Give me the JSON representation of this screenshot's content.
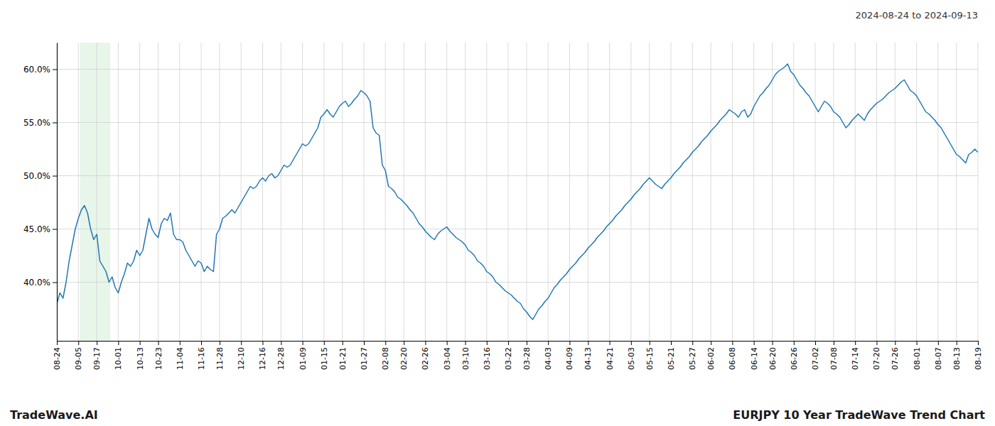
{
  "chart_data": {
    "type": "line",
    "title": "EURJPY 10 Year TradeWave Trend Chart",
    "subtitle": "2024-08-24 to 2024-09-13",
    "annotations": [
      "TradeWave.AI"
    ],
    "categories": [
      "08-24",
      null,
      null,
      null,
      null,
      null,
      null,
      "09-05",
      null,
      null,
      null,
      null,
      null,
      "09-17",
      null,
      null,
      null,
      null,
      null,
      null,
      "10-01",
      null,
      null,
      null,
      null,
      null,
      null,
      "10-13",
      null,
      null,
      null,
      null,
      null,
      "10-23",
      null,
      null,
      null,
      null,
      null,
      null,
      "11-04",
      null,
      null,
      null,
      null,
      null,
      null,
      "11-16",
      null,
      null,
      null,
      null,
      null,
      "11-28",
      null,
      null,
      null,
      null,
      null,
      null,
      "12-10",
      null,
      null,
      null,
      null,
      null,
      null,
      "12-16",
      null,
      null,
      null,
      null,
      null,
      "12-28",
      null,
      null,
      null,
      null,
      null,
      null,
      "01-09",
      null,
      null,
      null,
      null,
      null,
      null,
      "01-15",
      null,
      null,
      null,
      null,
      null,
      "01-21",
      null,
      null,
      null,
      null,
      null,
      null,
      "01-27",
      null,
      null,
      null,
      null,
      null,
      null,
      "02-08",
      null,
      null,
      null,
      null,
      null,
      "02-20",
      null,
      null,
      null,
      null,
      null,
      null,
      "02-26",
      null,
      null,
      null,
      null,
      null,
      null,
      "03-04",
      null,
      null,
      null,
      null,
      null,
      "03-10",
      null,
      null,
      null,
      null,
      null,
      null,
      "03-16",
      null,
      null,
      null,
      null,
      null,
      null,
      "03-22",
      null,
      null,
      null,
      null,
      null,
      "03-28",
      null,
      null,
      null,
      null,
      null,
      null,
      "04-03",
      null,
      null,
      null,
      null,
      null,
      null,
      "04-09",
      null,
      null,
      null,
      null,
      null,
      "04-13",
      null,
      null,
      null,
      null,
      null,
      null,
      "04-21",
      null,
      null,
      null,
      null,
      null,
      null,
      "05-03",
      null,
      null,
      null,
      null,
      null,
      "05-15",
      null,
      null,
      null,
      null,
      null,
      null,
      "05-21",
      null,
      null,
      null,
      null,
      null,
      null,
      "05-27",
      null,
      null,
      null,
      null,
      null,
      "06-02",
      null,
      null,
      null,
      null,
      null,
      null,
      "06-08",
      null,
      null,
      null,
      null,
      null,
      null,
      "06-14",
      null,
      null,
      null,
      null,
      null,
      "06-20",
      null,
      null,
      null,
      null,
      null,
      null,
      "06-26",
      null,
      null,
      null,
      null,
      null,
      null,
      "07-02",
      null,
      null,
      null,
      null,
      null,
      "07-08",
      null,
      null,
      null,
      null,
      null,
      null,
      "07-14",
      null,
      null,
      null,
      null,
      null,
      null,
      "07-20",
      null,
      null,
      null,
      null,
      null,
      "07-26",
      null,
      null,
      null,
      null,
      null,
      null,
      "08-01",
      null,
      null,
      null,
      null,
      null,
      null,
      "08-07",
      null,
      null,
      null,
      null,
      null,
      "08-13",
      null,
      null,
      null,
      null,
      null,
      null,
      "08-19"
    ],
    "values": [
      0.38,
      0.39,
      0.385,
      0.4,
      0.42,
      0.435,
      0.45,
      0.46,
      0.468,
      0.472,
      0.465,
      0.45,
      0.44,
      0.445,
      0.42,
      0.415,
      0.41,
      0.4,
      0.405,
      0.395,
      0.39,
      0.4,
      0.408,
      0.418,
      0.415,
      0.42,
      0.43,
      0.425,
      0.43,
      0.445,
      0.46,
      0.45,
      0.445,
      0.442,
      0.455,
      0.46,
      0.458,
      0.465,
      0.445,
      0.44,
      0.44,
      0.438,
      0.43,
      0.425,
      0.42,
      0.415,
      0.42,
      0.418,
      0.41,
      0.415,
      0.412,
      0.41,
      0.445,
      0.45,
      0.46,
      0.462,
      0.465,
      0.468,
      0.465,
      0.47,
      0.475,
      0.48,
      0.485,
      0.49,
      0.488,
      0.49,
      0.495,
      0.498,
      0.495,
      0.5,
      0.502,
      0.498,
      0.5,
      0.505,
      0.51,
      0.508,
      0.51,
      0.515,
      0.52,
      0.525,
      0.53,
      0.528,
      0.53,
      0.535,
      0.54,
      0.545,
      0.555,
      0.558,
      0.562,
      0.558,
      0.555,
      0.56,
      0.565,
      0.568,
      0.57,
      0.565,
      0.568,
      0.572,
      0.575,
      0.58,
      0.578,
      0.575,
      0.57,
      0.545,
      0.54,
      0.538,
      0.51,
      0.505,
      0.49,
      0.488,
      0.485,
      0.48,
      0.478,
      0.475,
      0.472,
      0.468,
      0.465,
      0.46,
      0.455,
      0.452,
      0.448,
      0.445,
      0.442,
      0.44,
      0.445,
      0.448,
      0.45,
      0.452,
      0.448,
      0.445,
      0.442,
      0.44,
      0.438,
      0.435,
      0.43,
      0.428,
      0.425,
      0.42,
      0.418,
      0.415,
      0.41,
      0.408,
      0.405,
      0.4,
      0.398,
      0.395,
      0.392,
      0.39,
      0.388,
      0.385,
      0.382,
      0.38,
      0.375,
      0.372,
      0.368,
      0.365,
      0.37,
      0.375,
      0.378,
      0.382,
      0.385,
      0.39,
      0.395,
      0.398,
      0.402,
      0.405,
      0.408,
      0.412,
      0.415,
      0.418,
      0.422,
      0.425,
      0.428,
      0.432,
      0.435,
      0.438,
      0.442,
      0.445,
      0.448,
      0.452,
      0.455,
      0.458,
      0.462,
      0.465,
      0.468,
      0.472,
      0.475,
      0.478,
      0.482,
      0.485,
      0.488,
      0.492,
      0.495,
      0.498,
      0.495,
      0.492,
      0.49,
      0.488,
      0.492,
      0.495,
      0.498,
      0.502,
      0.505,
      0.508,
      0.512,
      0.515,
      0.518,
      0.522,
      0.525,
      0.528,
      0.532,
      0.535,
      0.538,
      0.542,
      0.545,
      0.548,
      0.552,
      0.555,
      0.558,
      0.562,
      0.56,
      0.558,
      0.555,
      0.56,
      0.562,
      0.555,
      0.558,
      0.565,
      0.57,
      0.575,
      0.578,
      0.582,
      0.585,
      0.59,
      0.595,
      0.598,
      0.6,
      0.602,
      0.605,
      0.598,
      0.595,
      0.59,
      0.585,
      0.582,
      0.578,
      0.575,
      0.57,
      0.565,
      0.56,
      0.565,
      0.57,
      0.568,
      0.565,
      0.56,
      0.558,
      0.555,
      0.55,
      0.545,
      0.548,
      0.552,
      0.555,
      0.558,
      0.555,
      0.552,
      0.558,
      0.562,
      0.565,
      0.568,
      0.57,
      0.572,
      0.575,
      0.578,
      0.58,
      0.582,
      0.585,
      0.588,
      0.59,
      0.585,
      0.58,
      0.578,
      0.575,
      0.57,
      0.565,
      0.56,
      0.558,
      0.555,
      0.552,
      0.548,
      0.545,
      0.54,
      0.535,
      0.53,
      0.525,
      0.52,
      0.518,
      0.515,
      0.512,
      0.52,
      0.522,
      0.525,
      0.522
    ],
    "color": "#1f77b4",
    "ylim": [
      0.345,
      0.625
    ],
    "yticks": [
      {
        "value": 0.4,
        "label": "40.0%"
      },
      {
        "value": 0.45,
        "label": "45.0%"
      },
      {
        "value": 0.5,
        "label": "50.0%"
      },
      {
        "value": 0.55,
        "label": "55.0%"
      },
      {
        "value": 0.6,
        "label": "60.0%"
      }
    ],
    "grid": true,
    "highlight": {
      "start": 7.5,
      "end": 17.4,
      "color": "#e8f5e9"
    }
  }
}
